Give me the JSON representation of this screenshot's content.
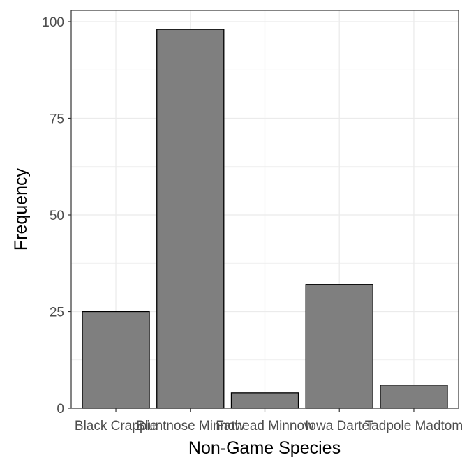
{
  "chart_data": {
    "type": "bar",
    "title": "",
    "xlabel": "Non-Game Species",
    "ylabel": "Frequency",
    "categories": [
      "Black Crappie",
      "Bluntnose Minnow",
      "Fathead Minnow",
      "Iowa Darter",
      "Tadpole Madtom"
    ],
    "values": [
      25,
      98,
      4,
      32,
      6
    ],
    "ylim": [
      0,
      100
    ],
    "yticks": [
      0,
      25,
      50,
      75,
      100
    ],
    "grid": true,
    "legend": "none",
    "colors": {
      "bar_fill": "#7f7f7f",
      "bar_stroke": "#000000",
      "grid": "#ebebeb",
      "panel_border": "#333333"
    }
  }
}
